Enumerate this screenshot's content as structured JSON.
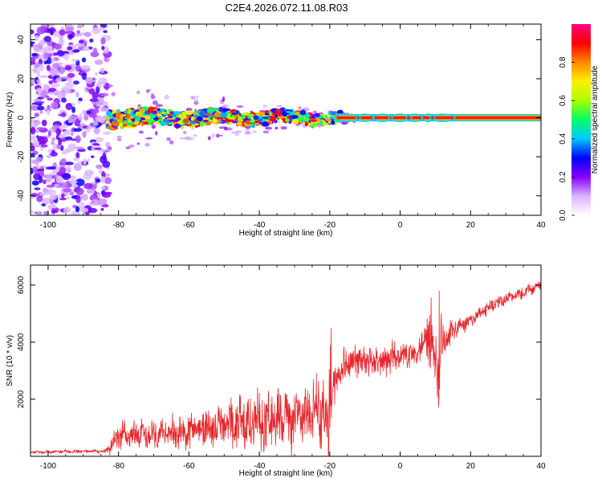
{
  "title": "C2E4.2026.072.11.08.R03",
  "chart_data": [
    {
      "type": "heatmap",
      "name": "spectrogram",
      "xlabel": "Height of straight line (km)",
      "ylabel": "Frequency (Hz)",
      "xlim": [
        -105,
        40
      ],
      "ylim": [
        -50,
        48
      ],
      "xticks": [
        -100,
        -80,
        -60,
        -40,
        -20,
        0,
        20,
        40
      ],
      "yticks": [
        -40,
        -20,
        0,
        20,
        40
      ],
      "noise_region_x": [
        -105,
        -83
      ],
      "signal_line_freq": 0,
      "colorbar": {
        "label": "Normalized spectral amplitude",
        "range": [
          0.0,
          1.0
        ],
        "ticks": [
          0.0,
          0.2,
          0.4,
          0.6,
          0.8
        ],
        "colors": [
          "#ffffff",
          "#d9b3ff",
          "#8800ff",
          "#0000ff",
          "#00c8ff",
          "#00ff66",
          "#aaff00",
          "#ffee00",
          "#ff8800",
          "#ff0000",
          "#ff0080"
        ]
      }
    },
    {
      "type": "line",
      "name": "snr",
      "xlabel": "Height of straight line (km)",
      "ylabel": "SNR (10 * v/v)",
      "xlim": [
        -105,
        40
      ],
      "ylim": [
        0,
        6700
      ],
      "xticks": [
        -100,
        -80,
        -60,
        -40,
        -20,
        0,
        20,
        40
      ],
      "yticks": [
        2000,
        4000,
        6000
      ],
      "color": "#e8262b",
      "envelope": {
        "x": [
          -105,
          -84,
          -82,
          -80,
          -70,
          -60,
          -55,
          -50,
          -45,
          -40,
          -30,
          -25,
          -21,
          -20,
          -19,
          -18,
          -15,
          -10,
          -5,
          0,
          5,
          7,
          8,
          10,
          11,
          12,
          15,
          20,
          25,
          30,
          35,
          40
        ],
        "mean": [
          150,
          180,
          350,
          700,
          800,
          850,
          1000,
          1100,
          1250,
          1300,
          1400,
          1500,
          1450,
          2500,
          2200,
          2800,
          3300,
          3300,
          3400,
          3500,
          3600,
          4000,
          3900,
          3600,
          3700,
          3900,
          4400,
          4800,
          5200,
          5500,
          5750,
          6000
        ],
        "amp": [
          60,
          80,
          400,
          500,
          550,
          700,
          800,
          900,
          1100,
          1200,
          1200,
          1300,
          1500,
          3800,
          1000,
          700,
          700,
          700,
          700,
          500,
          500,
          900,
          2600,
          800,
          2600,
          900,
          400,
          300,
          250,
          250,
          250,
          200
        ]
      }
    }
  ]
}
